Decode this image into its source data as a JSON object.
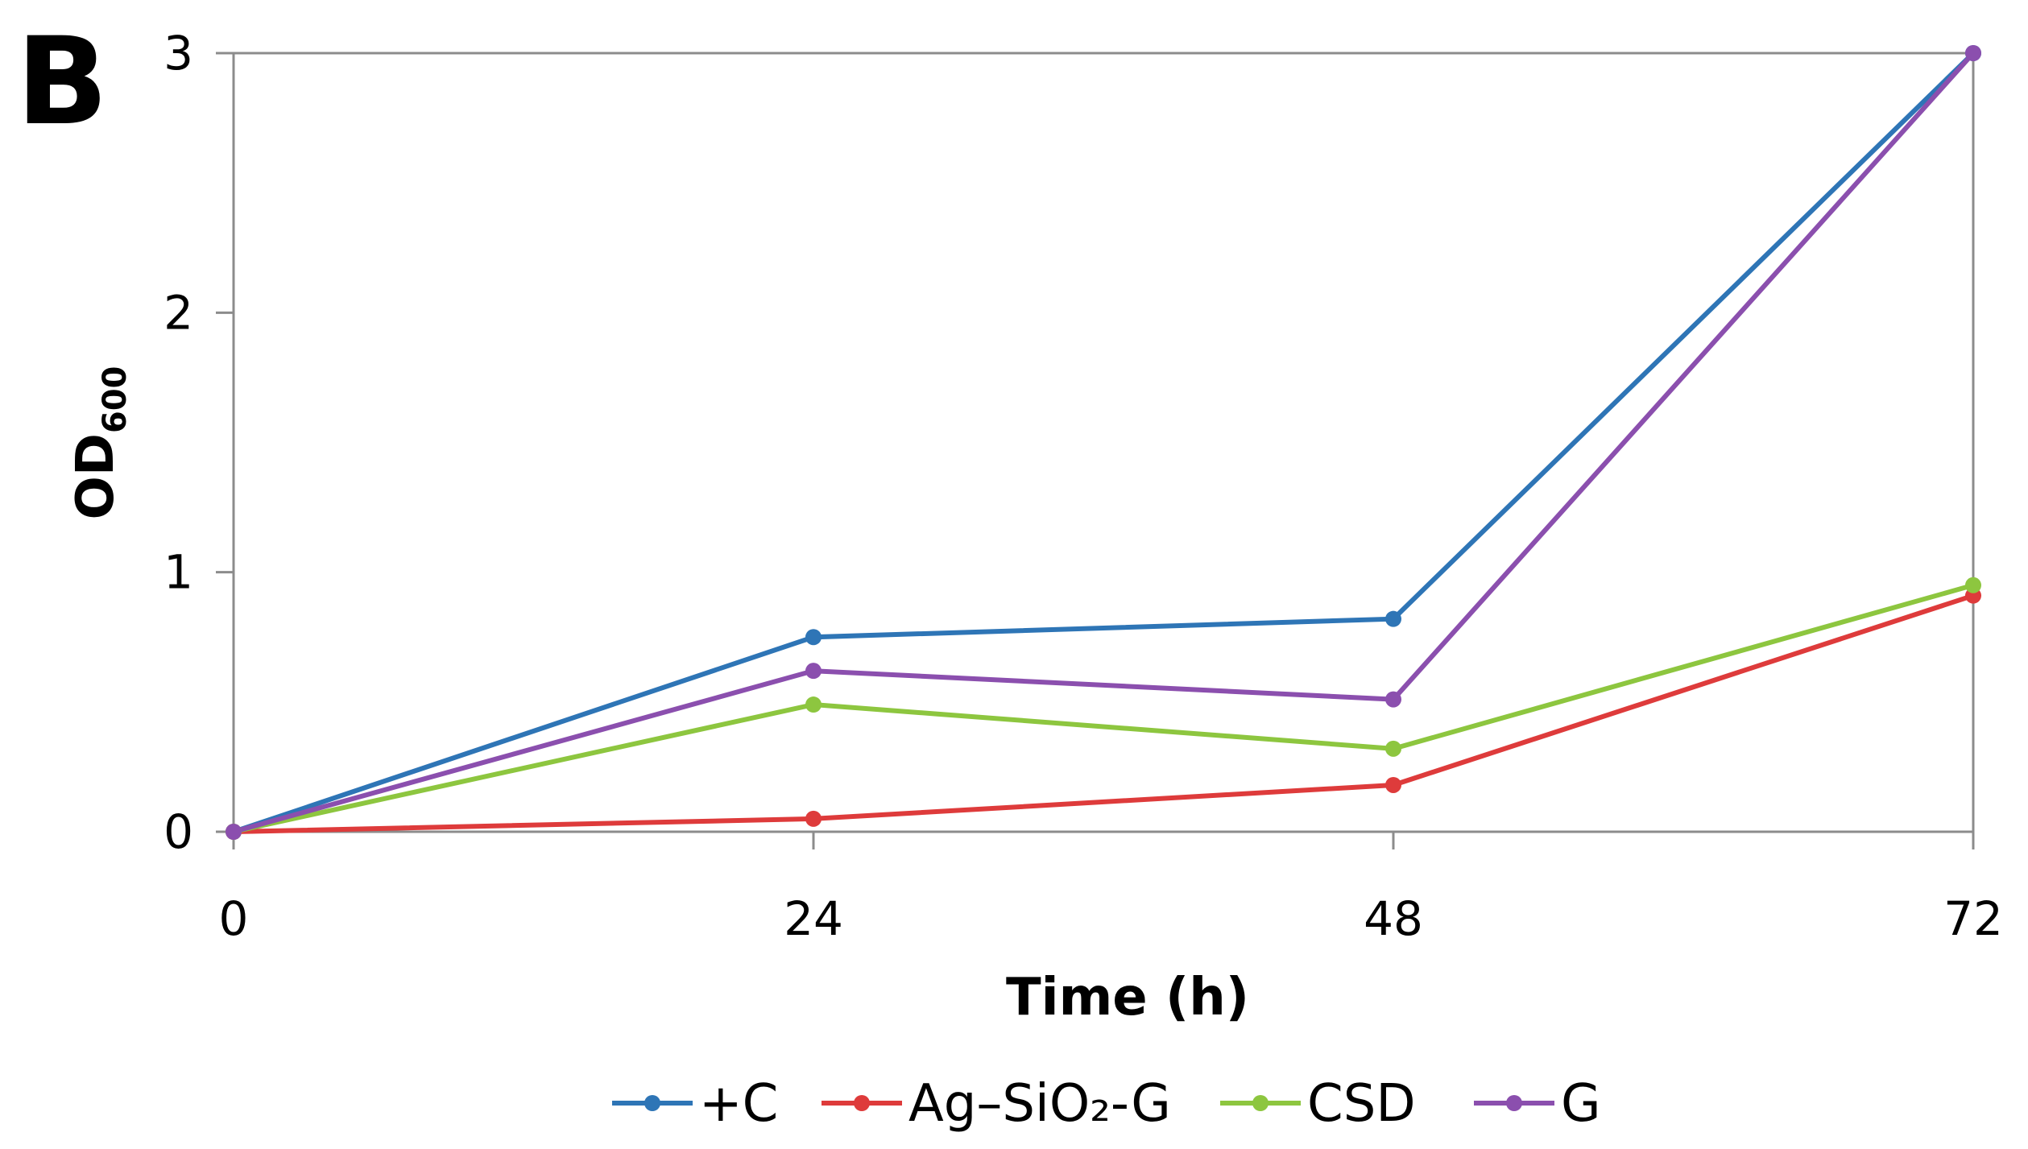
{
  "chart_data": {
    "type": "line",
    "panel_label": "B",
    "title": "",
    "xlabel": "Time (h)",
    "ylabel_main": "OD",
    "ylabel_subscript": "600",
    "x": [
      0,
      24,
      48,
      72
    ],
    "x_tick_labels": [
      "0",
      "24",
      "48",
      "72"
    ],
    "y_ticks": [
      0,
      1,
      2,
      3
    ],
    "y_tick_labels": [
      "0",
      "1",
      "2",
      "3"
    ],
    "xlim": [
      0,
      72
    ],
    "ylim": [
      0,
      3
    ],
    "grid": false,
    "legend_position": "bottom",
    "series": [
      {
        "name": "+C",
        "color": "#2e75b6",
        "values": [
          0,
          0.75,
          0.82,
          3.0
        ]
      },
      {
        "name": "Ag–SiO₂-G",
        "color": "#de3b3b",
        "values": [
          0,
          0.05,
          0.18,
          0.91
        ]
      },
      {
        "name": "CSD",
        "color": "#8dc63f",
        "values": [
          0,
          0.49,
          0.32,
          0.95
        ]
      },
      {
        "name": "G",
        "color": "#8b4fae",
        "values": [
          0,
          0.62,
          0.51,
          3.0
        ]
      }
    ]
  }
}
